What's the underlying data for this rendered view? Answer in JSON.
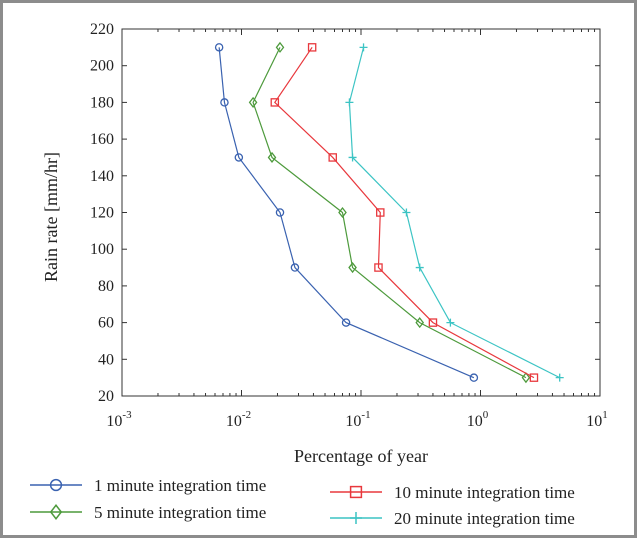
{
  "chart_data": {
    "type": "line",
    "xlabel": "Percentage of year",
    "ylabel": "Rain rate [mm/hr]",
    "x_scale": "log",
    "xlim": [
      0.001,
      10
    ],
    "ylim": [
      20,
      220
    ],
    "x_ticks": [
      0.001,
      0.01,
      0.1,
      1,
      10
    ],
    "x_tick_labels": [
      {
        "base": "10",
        "exp": "-3"
      },
      {
        "base": "10",
        "exp": "-2"
      },
      {
        "base": "10",
        "exp": "-1"
      },
      {
        "base": "10",
        "exp": "0"
      },
      {
        "base": "10",
        "exp": "1"
      }
    ],
    "y_ticks": [
      20,
      40,
      60,
      80,
      100,
      120,
      140,
      160,
      180,
      200,
      220
    ],
    "y_tick_labels": [
      "20",
      "40",
      "60",
      "80",
      "100",
      "120",
      "140",
      "160",
      "180",
      "200",
      "220"
    ],
    "grid": false,
    "legend_position": "bottom",
    "series": [
      {
        "name": "1 minute integration time",
        "color": "#3a62b0",
        "marker": "circle",
        "points": [
          [
            0.88,
            30
          ],
          [
            0.075,
            60
          ],
          [
            0.028,
            90
          ],
          [
            0.021,
            120
          ],
          [
            0.0095,
            150
          ],
          [
            0.0072,
            180
          ],
          [
            0.0065,
            210
          ]
        ]
      },
      {
        "name": "5 minute integration time",
        "color": "#4d9a3c",
        "marker": "diamond",
        "points": [
          [
            2.4,
            30
          ],
          [
            0.31,
            60
          ],
          [
            0.085,
            90
          ],
          [
            0.07,
            120
          ],
          [
            0.018,
            150
          ],
          [
            0.0125,
            180
          ],
          [
            0.021,
            210
          ]
        ]
      },
      {
        "name": "10 minute integration time",
        "color": "#e8383d",
        "marker": "square",
        "points": [
          [
            2.8,
            30
          ],
          [
            0.4,
            60
          ],
          [
            0.14,
            90
          ],
          [
            0.145,
            120
          ],
          [
            0.058,
            150
          ],
          [
            0.019,
            180
          ],
          [
            0.039,
            210
          ]
        ]
      },
      {
        "name": "20 minute integration time",
        "color": "#3cc4c4",
        "marker": "plus",
        "points": [
          [
            4.6,
            30
          ],
          [
            0.56,
            60
          ],
          [
            0.31,
            90
          ],
          [
            0.24,
            120
          ],
          [
            0.085,
            150
          ],
          [
            0.08,
            180
          ],
          [
            0.105,
            210
          ]
        ]
      }
    ]
  }
}
